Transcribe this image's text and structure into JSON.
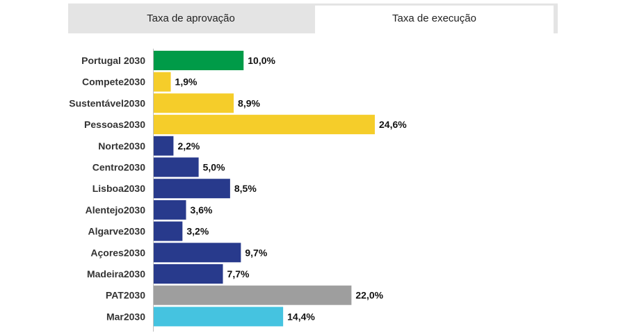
{
  "tabs": {
    "approval_label": "Taxa de aprovação",
    "execution_label": "Taxa de execução",
    "active": "execution"
  },
  "chart_data": {
    "type": "bar",
    "orientation": "horizontal",
    "categories": [
      "Portugal 2030",
      "Compete2030",
      "Sustentável2030",
      "Pessoas2030",
      "Norte2030",
      "Centro2030",
      "Lisboa2030",
      "Alentejo2030",
      "Algarve2030",
      "Açores2030",
      "Madeira2030",
      "PAT2030",
      "Mar2030"
    ],
    "values": [
      10.0,
      1.9,
      8.9,
      24.6,
      2.2,
      5.0,
      8.5,
      3.6,
      3.2,
      9.7,
      7.7,
      22.0,
      14.4
    ],
    "value_labels": [
      "10,0%",
      "1,9%",
      "8,9%",
      "24,6%",
      "2,2%",
      "5,0%",
      "8,5%",
      "3,6%",
      "3,2%",
      "9,7%",
      "7,7%",
      "22,0%",
      "14,4%"
    ],
    "colors": [
      "#009b48",
      "#f5cd2a",
      "#f5cd2a",
      "#f5cd2a",
      "#283a8c",
      "#283a8c",
      "#283a8c",
      "#283a8c",
      "#283a8c",
      "#283a8c",
      "#283a8c",
      "#9e9e9e",
      "#45c3e0"
    ],
    "xlim": [
      0,
      24.6
    ],
    "unit": "%",
    "grid": false,
    "title": "",
    "xlabel": "",
    "ylabel": ""
  }
}
